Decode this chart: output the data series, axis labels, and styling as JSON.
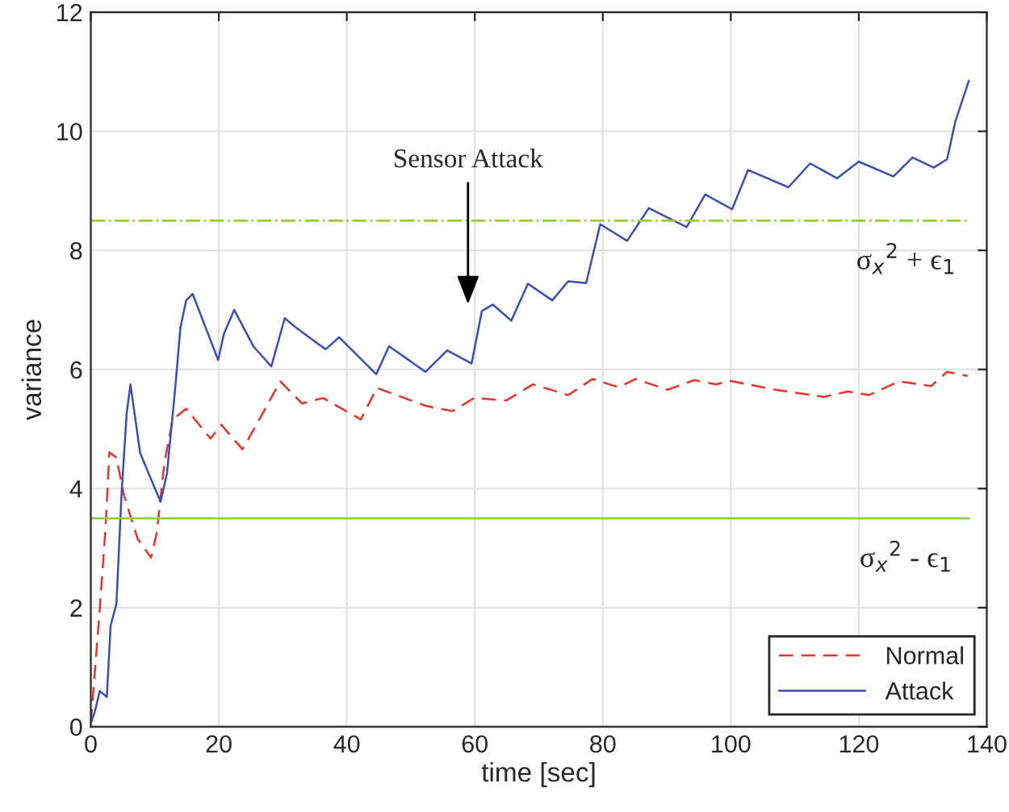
{
  "chart_data": {
    "type": "line",
    "xlabel": "time [sec]",
    "ylabel": "variance",
    "xlim": [
      0,
      140
    ],
    "xticks": [
      0,
      20,
      40,
      60,
      80,
      100,
      120,
      140
    ],
    "ylim": [
      0,
      12
    ],
    "yticks": [
      0,
      2,
      4,
      6,
      8,
      10,
      12
    ],
    "grid": true,
    "legend": "bottom right",
    "marker": "none",
    "series": [
      {
        "name": "Normal",
        "color": "#e8322c",
        "line_style": "dashed",
        "x": [
          0,
          0.8,
          1.4,
          2.3,
          2.9,
          4.0,
          5.2,
          7.3,
          9.4,
          10.3,
          11.5,
          12.8,
          14.9,
          18.7,
          20.4,
          23.7,
          25.4,
          29.6,
          33.0,
          36.3,
          42.2,
          44.7,
          52.3,
          56.5,
          59.9,
          64.9,
          69.1,
          74.6,
          78.4,
          82.5,
          85.1,
          90.1,
          94.3,
          97.7,
          99.8,
          106.9,
          114.5,
          118.3,
          121.6,
          126.3,
          131.3,
          133.8,
          137.0
        ],
        "values": [
          0.06,
          1.15,
          1.97,
          3.34,
          4.61,
          4.52,
          3.88,
          3.16,
          2.84,
          3.25,
          4.43,
          5.16,
          5.34,
          4.84,
          5.07,
          4.66,
          4.98,
          5.8,
          5.43,
          5.52,
          5.16,
          5.69,
          5.39,
          5.3,
          5.52,
          5.48,
          5.75,
          5.57,
          5.84,
          5.7,
          5.84,
          5.66,
          5.82,
          5.75,
          5.81,
          5.66,
          5.54,
          5.63,
          5.57,
          5.8,
          5.72,
          5.96,
          5.89
        ]
      },
      {
        "name": "Attack",
        "color": "#3a4fb0",
        "line_style": "solid",
        "x": [
          0,
          0.6,
          1.4,
          2.5,
          3.1,
          4.0,
          4.8,
          5.6,
          6.2,
          7.7,
          9.4,
          10.9,
          11.9,
          13.2,
          14.0,
          14.9,
          15.9,
          19.9,
          20.8,
          22.4,
          25.4,
          28.2,
          30.3,
          32.1,
          35.5,
          36.7,
          38.8,
          44.6,
          46.6,
          52.3,
          55.7,
          59.5,
          61.1,
          62.8,
          65.7,
          68.3,
          72.1,
          74.6,
          77.4,
          79.6,
          83.8,
          87.2,
          93.1,
          96.0,
          100.2,
          102.7,
          109.0,
          112.4,
          116.6,
          120.0,
          125.4,
          128.4,
          131.7,
          133.8,
          135.1,
          137.2
        ],
        "values": [
          0.06,
          0.24,
          0.6,
          0.5,
          1.7,
          2.06,
          3.9,
          5.26,
          5.75,
          4.6,
          4.16,
          3.78,
          4.25,
          5.7,
          6.7,
          7.16,
          7.27,
          6.16,
          6.6,
          7.0,
          6.39,
          6.05,
          6.86,
          6.7,
          6.43,
          6.34,
          6.54,
          5.92,
          6.39,
          5.96,
          6.32,
          6.1,
          6.98,
          7.09,
          6.82,
          7.44,
          7.16,
          7.48,
          7.45,
          8.44,
          8.16,
          8.71,
          8.39,
          8.94,
          8.69,
          9.35,
          9.06,
          9.46,
          9.21,
          9.49,
          9.24,
          9.56,
          9.39,
          9.53,
          10.17,
          10.85
        ]
      }
    ],
    "ref_lines": [
      {
        "axis": "y",
        "value": 8.5,
        "label": "σ$_{x}$$^{2}$ + ϵ$_{1}$",
        "color": "#9acd32",
        "line_style": "dashdot"
      },
      {
        "axis": "y",
        "value": 3.5,
        "label": "σ$_{x}$$^{2}$ - ϵ$_{1}$",
        "color": "#8ccf4d",
        "line_style": "solid"
      }
    ],
    "annotations": [
      "Sensor Attack"
    ]
  }
}
